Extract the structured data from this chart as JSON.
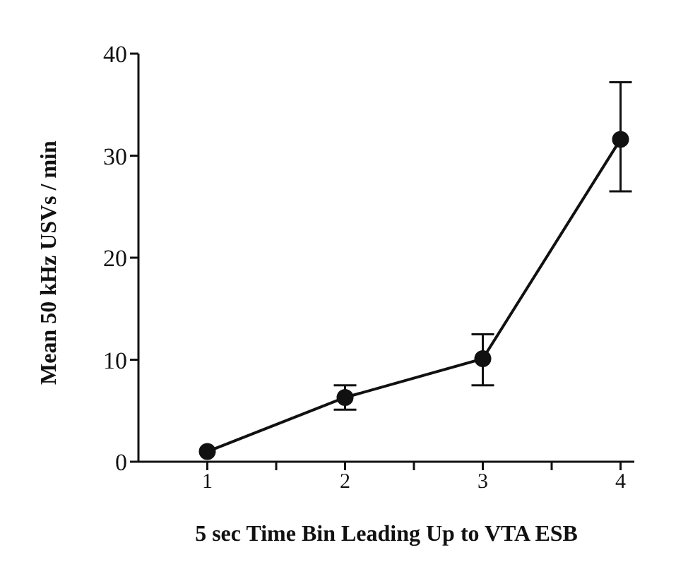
{
  "chart_data": {
    "type": "line",
    "xlabel": "5 sec Time Bin Leading Up to VTA ESB",
    "ylabel": "Mean 50 kHz USVs / min",
    "x": [
      1,
      2,
      3,
      4
    ],
    "series": [
      {
        "color": "#111111",
        "values": [
          1.0,
          6.3,
          10.1,
          31.6
        ],
        "errors": [
          null,
          [
            5.1,
            7.5
          ],
          [
            7.5,
            12.5
          ],
          [
            26.5,
            37.2
          ]
        ]
      }
    ],
    "xlim": [
      0.5,
      4.1
    ],
    "xticks": [
      1,
      {
        "value": 1.5,
        "label": null
      },
      2,
      {
        "value": 2.5,
        "label": null
      },
      3,
      {
        "value": 3.5,
        "label": null
      },
      4
    ],
    "ylim": [
      0,
      40
    ],
    "yticks": [
      0,
      10,
      20,
      30,
      40
    ],
    "grid": false,
    "legend": false,
    "marker": "circle",
    "line_style": "solid"
  }
}
